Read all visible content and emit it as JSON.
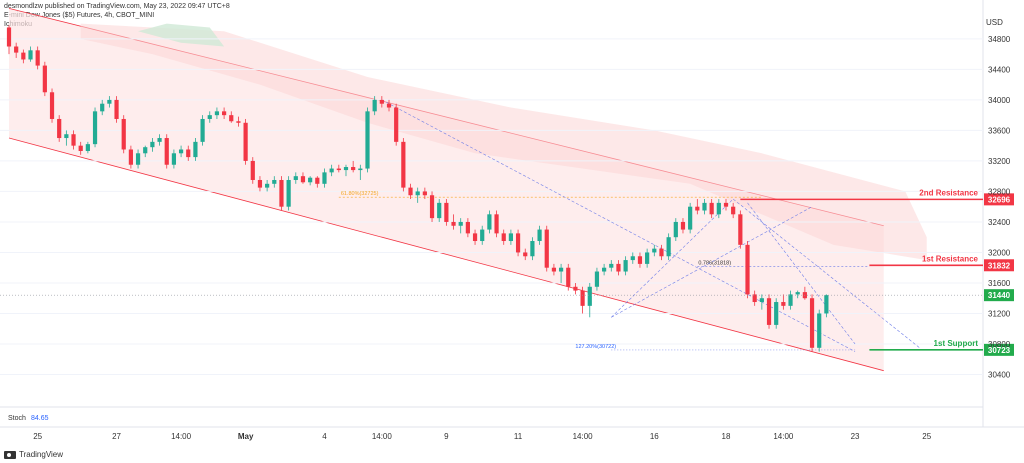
{
  "header": {
    "publisher_line": "desmondlzw published on TradingView.com, May 23, 2022 09:47 UTC+8",
    "symbol_line": "E-mini Dow Jones ($5) Futures, 4h, CBOT_MINI",
    "indicator": "Ichimoku"
  },
  "footer": {
    "brand": "TradingView"
  },
  "stoch": {
    "label": "Stoch",
    "value": "84.65"
  },
  "chart_data": {
    "type": "candlestick",
    "title": "E-mini Dow Jones ($5) Futures, 4h, CBOT_MINI",
    "currency_label": "USD",
    "ylim": [
      30000,
      35100
    ],
    "y_ticks": [
      34800,
      34400,
      34000,
      33600,
      33200,
      32800,
      32400,
      32000,
      31600,
      31200,
      30800,
      30400
    ],
    "x_ticks": [
      {
        "label": "25",
        "i": 4
      },
      {
        "label": "27",
        "i": 15
      },
      {
        "label": "14:00",
        "i": 24
      },
      {
        "label": "May",
        "i": 33
      },
      {
        "label": "4",
        "i": 44
      },
      {
        "label": "14:00",
        "i": 52
      },
      {
        "label": "9",
        "i": 61
      },
      {
        "label": "11",
        "i": 71
      },
      {
        "label": "14:00",
        "i": 80
      },
      {
        "label": "16",
        "i": 90
      },
      {
        "label": "18",
        "i": 100
      },
      {
        "label": "14:00",
        "i": 108
      },
      {
        "label": "23",
        "i": 118
      },
      {
        "label": "25",
        "i": 128
      }
    ],
    "candles": [
      [
        34950,
        34980,
        34600,
        34700
      ],
      [
        34700,
        34750,
        34550,
        34620
      ],
      [
        34620,
        34660,
        34480,
        34530
      ],
      [
        34530,
        34700,
        34500,
        34650
      ],
      [
        34650,
        34700,
        34400,
        34450
      ],
      [
        34450,
        34500,
        34050,
        34100
      ],
      [
        34100,
        34150,
        33700,
        33750
      ],
      [
        33750,
        33800,
        33450,
        33500
      ],
      [
        33500,
        33600,
        33400,
        33550
      ],
      [
        33550,
        33600,
        33350,
        33400
      ],
      [
        33400,
        33450,
        33280,
        33330
      ],
      [
        33330,
        33450,
        33300,
        33420
      ],
      [
        33420,
        33900,
        33380,
        33850
      ],
      [
        33850,
        34000,
        33800,
        33950
      ],
      [
        33950,
        34050,
        33900,
        34000
      ],
      [
        34000,
        34050,
        33700,
        33750
      ],
      [
        33750,
        33800,
        33300,
        33350
      ],
      [
        33350,
        33400,
        33100,
        33150
      ],
      [
        33150,
        33350,
        33100,
        33300
      ],
      [
        33300,
        33400,
        33250,
        33380
      ],
      [
        33380,
        33500,
        33320,
        33450
      ],
      [
        33450,
        33550,
        33400,
        33500
      ],
      [
        33500,
        33550,
        33100,
        33150
      ],
      [
        33150,
        33350,
        33100,
        33300
      ],
      [
        33300,
        33400,
        33250,
        33350
      ],
      [
        33350,
        33400,
        33200,
        33250
      ],
      [
        33250,
        33500,
        33200,
        33450
      ],
      [
        33450,
        33800,
        33400,
        33750
      ],
      [
        33750,
        33850,
        33700,
        33800
      ],
      [
        33800,
        33900,
        33750,
        33850
      ],
      [
        33850,
        33900,
        33750,
        33800
      ],
      [
        33800,
        33850,
        33700,
        33720
      ],
      [
        33720,
        33780,
        33650,
        33700
      ],
      [
        33700,
        33750,
        33150,
        33200
      ],
      [
        33200,
        33250,
        32900,
        32950
      ],
      [
        32950,
        33000,
        32800,
        32850
      ],
      [
        32850,
        32950,
        32800,
        32900
      ],
      [
        32900,
        33000,
        32850,
        32950
      ],
      [
        32950,
        33000,
        32550,
        32600
      ],
      [
        32600,
        33000,
        32550,
        32950
      ],
      [
        32950,
        33050,
        32900,
        33000
      ],
      [
        33000,
        33050,
        32900,
        32920
      ],
      [
        32920,
        33000,
        32880,
        32980
      ],
      [
        32980,
        33000,
        32850,
        32900
      ],
      [
        32900,
        33100,
        32850,
        33050
      ],
      [
        33050,
        33150,
        33000,
        33100
      ],
      [
        33100,
        33150,
        33050,
        33080
      ],
      [
        33080,
        33150,
        33000,
        33120
      ],
      [
        33120,
        33200,
        33050,
        33080
      ],
      [
        33080,
        33150,
        32950,
        33100
      ],
      [
        33100,
        33900,
        33050,
        33850
      ],
      [
        33850,
        34050,
        33800,
        34000
      ],
      [
        34000,
        34050,
        33900,
        33950
      ],
      [
        33950,
        34000,
        33850,
        33900
      ],
      [
        33900,
        33950,
        33400,
        33450
      ],
      [
        33450,
        33500,
        32800,
        32850
      ],
      [
        32850,
        32900,
        32700,
        32750
      ],
      [
        32750,
        32850,
        32650,
        32800
      ],
      [
        32800,
        32850,
        32700,
        32750
      ],
      [
        32750,
        32800,
        32400,
        32450
      ],
      [
        32450,
        32700,
        32400,
        32650
      ],
      [
        32650,
        32700,
        32350,
        32400
      ],
      [
        32400,
        32500,
        32300,
        32350
      ],
      [
        32350,
        32450,
        32250,
        32400
      ],
      [
        32400,
        32450,
        32200,
        32250
      ],
      [
        32250,
        32300,
        32100,
        32150
      ],
      [
        32150,
        32350,
        32100,
        32300
      ],
      [
        32300,
        32550,
        32250,
        32500
      ],
      [
        32500,
        32550,
        32200,
        32250
      ],
      [
        32250,
        32300,
        32100,
        32150
      ],
      [
        32150,
        32300,
        32100,
        32250
      ],
      [
        32250,
        32300,
        31950,
        32000
      ],
      [
        32000,
        32050,
        31900,
        31950
      ],
      [
        31950,
        32200,
        31900,
        32150
      ],
      [
        32150,
        32350,
        32100,
        32300
      ],
      [
        32300,
        32350,
        31750,
        31800
      ],
      [
        31800,
        31850,
        31700,
        31750
      ],
      [
        31750,
        31850,
        31600,
        31800
      ],
      [
        31800,
        31850,
        31500,
        31550
      ],
      [
        31550,
        31600,
        31450,
        31500
      ],
      [
        31500,
        31550,
        31200,
        31300
      ],
      [
        31300,
        31600,
        31150,
        31550
      ],
      [
        31550,
        31800,
        31500,
        31750
      ],
      [
        31750,
        31850,
        31700,
        31800
      ],
      [
        31800,
        31900,
        31750,
        31850
      ],
      [
        31850,
        31900,
        31700,
        31750
      ],
      [
        31750,
        31950,
        31700,
        31900
      ],
      [
        31900,
        32000,
        31850,
        31950
      ],
      [
        31950,
        32000,
        31800,
        31850
      ],
      [
        31850,
        32050,
        31800,
        32000
      ],
      [
        32000,
        32100,
        31950,
        32050
      ],
      [
        32050,
        32100,
        31900,
        31950
      ],
      [
        31950,
        32250,
        31900,
        32200
      ],
      [
        32200,
        32450,
        32150,
        32400
      ],
      [
        32400,
        32450,
        32250,
        32300
      ],
      [
        32300,
        32650,
        32250,
        32600
      ],
      [
        32600,
        32700,
        32500,
        32550
      ],
      [
        32550,
        32700,
        32500,
        32650
      ],
      [
        32650,
        32700,
        32450,
        32500
      ],
      [
        32500,
        32700,
        32450,
        32650
      ],
      [
        32650,
        32700,
        32550,
        32600
      ],
      [
        32600,
        32650,
        32450,
        32500
      ],
      [
        32500,
        32550,
        32050,
        32100
      ],
      [
        32100,
        32150,
        31400,
        31450
      ],
      [
        31450,
        31500,
        31300,
        31350
      ],
      [
        31350,
        31450,
        31250,
        31400
      ],
      [
        31400,
        31450,
        31000,
        31050
      ],
      [
        31050,
        31400,
        31000,
        31350
      ],
      [
        31350,
        31450,
        31250,
        31300
      ],
      [
        31300,
        31500,
        31250,
        31450
      ],
      [
        31450,
        31500,
        31400,
        31480
      ],
      [
        31480,
        31550,
        31380,
        31400
      ],
      [
        31400,
        31450,
        30700,
        30750
      ],
      [
        30750,
        31250,
        30700,
        31200
      ],
      [
        31200,
        31450,
        31150,
        31440
      ]
    ],
    "channel": {
      "upper": [
        [
          0,
          35200
        ],
        [
          122,
          32350
        ]
      ],
      "lower": [
        [
          0,
          33500
        ],
        [
          122,
          30450
        ]
      ]
    },
    "levels": [
      {
        "name": "2nd Resistance",
        "value": 32696,
        "label": "32696",
        "color": "#f23645"
      },
      {
        "name": "1st Resistance",
        "value": 31832,
        "label": "31832",
        "color": "#f23645"
      },
      {
        "name": "1st Support",
        "value": 30723,
        "label": "30723",
        "color": "#22ab4c"
      }
    ],
    "current_price": {
      "value": 31440,
      "label": "31440"
    },
    "fib_levels": [
      {
        "label": "61.80%(32725)",
        "value": 32725
      },
      {
        "label": "0.786(31818)",
        "value": 31818
      },
      {
        "label": "127.20%(30722)",
        "value": 30722
      }
    ],
    "colors": {
      "up": "#22ab94",
      "down": "#f23645",
      "channel_fill": "#fde6e6",
      "cloud_red": "#fcd6d6",
      "cloud_green": "#cfe9d6",
      "fib_orange": "#f5a623",
      "dashed_blue": "#6f7ee8"
    }
  }
}
